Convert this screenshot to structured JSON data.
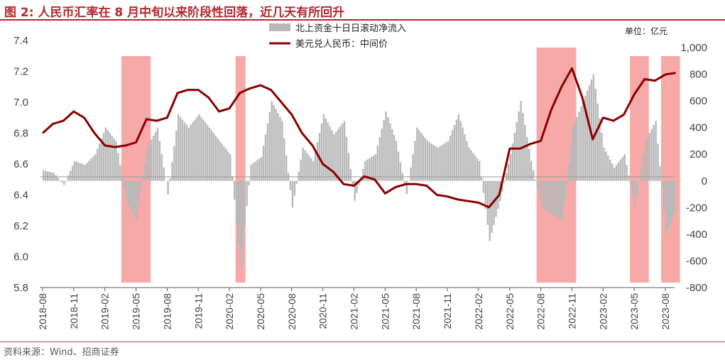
{
  "title": "图 2:  人民币汇率在 8 月中旬以来阶段性回落，近几天有所回升",
  "source": "资料来源：Wind、招商证券",
  "colors": {
    "title": "#b5272d",
    "line": "#8b0000",
    "bars": "#b8b8b8",
    "shade": "#f7a9a8"
  },
  "chart_data": {
    "type": "line",
    "unit_label": "单位：亿元",
    "legend": [
      {
        "name": "北上资金十日日滚动净流入",
        "style": "bar"
      },
      {
        "name": "美元兑人民币：中间价",
        "style": "line"
      }
    ],
    "x_ticks": [
      "2018-08",
      "2018-11",
      "2019-02",
      "2019-05",
      "2019-08",
      "2019-11",
      "2020-02",
      "2020-05",
      "2020-08",
      "2020-11",
      "2021-02",
      "2021-05",
      "2021-08",
      "2021-11",
      "2022-02",
      "2022-05",
      "2022-08",
      "2022-11",
      "2023-02",
      "2023-05",
      "2023-08"
    ],
    "y_left": {
      "min": 5.8,
      "max": 7.4,
      "ticks": [
        "5.8",
        "6.0",
        "6.2",
        "6.4",
        "6.6",
        "6.8",
        "7.0",
        "7.2",
        "7.4"
      ]
    },
    "y_right": {
      "min": -800,
      "max": 1000,
      "ticks": [
        "-800",
        "-600",
        "-400",
        "-200",
        "0",
        "200",
        "400",
        "600",
        "800",
        "1,000"
      ]
    },
    "shaded_periods": [
      {
        "start": "2019-04",
        "end": "2019-06"
      },
      {
        "start": "2020-03",
        "end": "2020-03"
      },
      {
        "start": "2022-08",
        "end": "2022-11"
      },
      {
        "start": "2023-05",
        "end": "2023-06"
      },
      {
        "start": "2023-08",
        "end": "2023-09"
      }
    ],
    "series": [
      {
        "name": "美元兑人民币：中间价",
        "axis": "left",
        "points": [
          [
            "2018-08",
            6.8
          ],
          [
            "2018-09",
            6.86
          ],
          [
            "2018-10",
            6.88
          ],
          [
            "2018-11",
            6.94
          ],
          [
            "2018-12",
            6.9
          ],
          [
            "2019-01",
            6.8
          ],
          [
            "2019-02",
            6.72
          ],
          [
            "2019-03",
            6.71
          ],
          [
            "2019-04",
            6.72
          ],
          [
            "2019-05",
            6.74
          ],
          [
            "2019-06",
            6.89
          ],
          [
            "2019-07",
            6.88
          ],
          [
            "2019-08",
            6.9
          ],
          [
            "2019-09",
            7.06
          ],
          [
            "2019-10",
            7.08
          ],
          [
            "2019-11",
            7.08
          ],
          [
            "2019-12",
            7.03
          ],
          [
            "2020-01",
            6.94
          ],
          [
            "2020-02",
            6.96
          ],
          [
            "2020-03",
            7.06
          ],
          [
            "2020-04",
            7.09
          ],
          [
            "2020-05",
            7.11
          ],
          [
            "2020-06",
            7.08
          ],
          [
            "2020-07",
            7.0
          ],
          [
            "2020-08",
            6.92
          ],
          [
            "2020-09",
            6.8
          ],
          [
            "2020-10",
            6.72
          ],
          [
            "2020-11",
            6.6
          ],
          [
            "2020-12",
            6.55
          ],
          [
            "2021-01",
            6.47
          ],
          [
            "2021-02",
            6.46
          ],
          [
            "2021-03",
            6.52
          ],
          [
            "2021-04",
            6.5
          ],
          [
            "2021-05",
            6.41
          ],
          [
            "2021-06",
            6.45
          ],
          [
            "2021-07",
            6.47
          ],
          [
            "2021-08",
            6.47
          ],
          [
            "2021-09",
            6.46
          ],
          [
            "2021-10",
            6.4
          ],
          [
            "2021-11",
            6.39
          ],
          [
            "2021-12",
            6.37
          ],
          [
            "2022-01",
            6.36
          ],
          [
            "2022-02",
            6.35
          ],
          [
            "2022-03",
            6.32
          ],
          [
            "2022-04",
            6.4
          ],
          [
            "2022-05",
            6.7
          ],
          [
            "2022-06",
            6.7
          ],
          [
            "2022-07",
            6.73
          ],
          [
            "2022-08",
            6.75
          ],
          [
            "2022-09",
            6.95
          ],
          [
            "2022-10",
            7.1
          ],
          [
            "2022-11",
            7.22
          ],
          [
            "2022-12",
            7.03
          ],
          [
            "2023-01",
            6.76
          ],
          [
            "2023-02",
            6.9
          ],
          [
            "2023-03",
            6.88
          ],
          [
            "2023-04",
            6.92
          ],
          [
            "2023-05",
            7.05
          ],
          [
            "2023-06",
            7.15
          ],
          [
            "2023-07",
            7.14
          ],
          [
            "2023-08",
            7.18
          ],
          [
            "2023-09",
            7.19
          ]
        ]
      },
      {
        "name": "北上资金十日日滚动净流入",
        "axis": "right",
        "points": [
          [
            "2018-08",
            80
          ],
          [
            "2018-09",
            60
          ],
          [
            "2018-10",
            -30
          ],
          [
            "2018-11",
            150
          ],
          [
            "2018-12",
            120
          ],
          [
            "2019-01",
            200
          ],
          [
            "2019-02",
            400
          ],
          [
            "2019-03",
            300
          ],
          [
            "2019-04",
            -150
          ],
          [
            "2019-05",
            -300
          ],
          [
            "2019-06",
            250
          ],
          [
            "2019-07",
            400
          ],
          [
            "2019-08",
            -100
          ],
          [
            "2019-09",
            500
          ],
          [
            "2019-10",
            400
          ],
          [
            "2019-11",
            500
          ],
          [
            "2019-12",
            400
          ],
          [
            "2020-01",
            300
          ],
          [
            "2020-02",
            200
          ],
          [
            "2020-03",
            -650
          ],
          [
            "2020-04",
            120
          ],
          [
            "2020-05",
            180
          ],
          [
            "2020-06",
            600
          ],
          [
            "2020-07",
            450
          ],
          [
            "2020-08",
            -200
          ],
          [
            "2020-09",
            250
          ],
          [
            "2020-10",
            150
          ],
          [
            "2020-11",
            500
          ],
          [
            "2020-12",
            350
          ],
          [
            "2021-01",
            450
          ],
          [
            "2021-02",
            -150
          ],
          [
            "2021-03",
            150
          ],
          [
            "2021-04",
            200
          ],
          [
            "2021-05",
            520
          ],
          [
            "2021-06",
            300
          ],
          [
            "2021-07",
            -100
          ],
          [
            "2021-08",
            400
          ],
          [
            "2021-09",
            300
          ],
          [
            "2021-10",
            250
          ],
          [
            "2021-11",
            300
          ],
          [
            "2021-12",
            500
          ],
          [
            "2022-01",
            250
          ],
          [
            "2022-02",
            150
          ],
          [
            "2022-03",
            -450
          ],
          [
            "2022-04",
            -150
          ],
          [
            "2022-05",
            200
          ],
          [
            "2022-06",
            600
          ],
          [
            "2022-07",
            150
          ],
          [
            "2022-08",
            -200
          ],
          [
            "2022-09",
            -250
          ],
          [
            "2022-10",
            -300
          ],
          [
            "2022-11",
            400
          ],
          [
            "2022-12",
            600
          ],
          [
            "2023-01",
            800
          ],
          [
            "2023-02",
            250
          ],
          [
            "2023-03",
            100
          ],
          [
            "2023-04",
            200
          ],
          [
            "2023-05",
            -200
          ],
          [
            "2023-06",
            300
          ],
          [
            "2023-07",
            450
          ],
          [
            "2023-08",
            -400
          ],
          [
            "2023-09",
            -200
          ]
        ]
      }
    ]
  }
}
